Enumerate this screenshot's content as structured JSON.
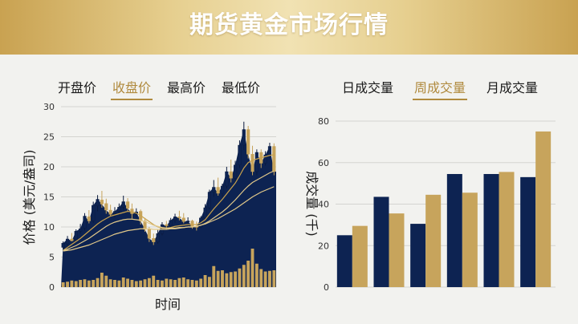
{
  "title": "期货黄金市场行情",
  "colors": {
    "navy": "#0d2352",
    "gold": "#c7a45c",
    "ma_light": "#e2c98a",
    "ma_gold": "#c9a24c"
  },
  "left_tabs": [
    {
      "label": "开盘价",
      "active": false
    },
    {
      "label": "收盘价",
      "active": true
    },
    {
      "label": "最高价",
      "active": false
    },
    {
      "label": "最低价",
      "active": false
    }
  ],
  "right_tabs": [
    {
      "label": "日成交量",
      "active": false
    },
    {
      "label": "周成交量",
      "active": true
    },
    {
      "label": "月成交量",
      "active": false
    }
  ],
  "chart_data": [
    {
      "type": "candlestick",
      "title": "",
      "xlabel": "时间",
      "ylabel": "价格 (美元/盎司)",
      "ylim": [
        0,
        30
      ],
      "yticks": [
        0,
        5,
        10,
        15,
        20,
        25,
        30
      ],
      "grid": true,
      "legend": "none",
      "ohlc": [
        [
          6.6,
          7.6,
          6.2,
          7.3
        ],
        [
          7.2,
          8.5,
          6.9,
          8.0
        ],
        [
          8.0,
          9.0,
          7.6,
          7.7
        ],
        [
          7.8,
          9.6,
          7.5,
          9.3
        ],
        [
          9.3,
          10.5,
          8.9,
          9.7
        ],
        [
          9.8,
          12.3,
          9.4,
          11.8
        ],
        [
          11.7,
          12.8,
          10.6,
          11.0
        ],
        [
          11.0,
          14.2,
          10.7,
          13.6
        ],
        [
          13.5,
          15.3,
          12.6,
          14.6
        ],
        [
          14.5,
          16.0,
          13.2,
          13.8
        ],
        [
          13.9,
          14.7,
          12.2,
          12.8
        ],
        [
          12.8,
          13.7,
          11.8,
          12.1
        ],
        [
          12.2,
          13.3,
          11.6,
          12.6
        ],
        [
          12.6,
          13.9,
          11.9,
          13.3
        ],
        [
          13.3,
          15.2,
          12.9,
          14.2
        ],
        [
          14.2,
          14.8,
          12.6,
          13.1
        ],
        [
          13.0,
          13.9,
          11.4,
          12.2
        ],
        [
          12.2,
          13.1,
          11.6,
          12.5
        ],
        [
          12.6,
          12.9,
          10.4,
          11.0
        ],
        [
          11.0,
          11.5,
          9.2,
          9.6
        ],
        [
          9.6,
          10.0,
          7.5,
          8.1
        ],
        [
          8.1,
          8.9,
          7.0,
          7.5
        ],
        [
          7.5,
          9.5,
          7.2,
          8.9
        ],
        [
          8.9,
          10.8,
          8.6,
          10.4
        ],
        [
          10.4,
          11.0,
          9.6,
          10.2
        ],
        [
          10.2,
          11.5,
          10.0,
          11.1
        ],
        [
          11.1,
          12.2,
          10.7,
          11.7
        ],
        [
          11.7,
          12.7,
          11.1,
          11.5
        ],
        [
          11.5,
          12.3,
          10.6,
          10.9
        ],
        [
          10.9,
          11.6,
          10.3,
          11.0
        ],
        [
          11.0,
          11.2,
          9.7,
          10.1
        ],
        [
          10.1,
          10.9,
          9.4,
          10.0
        ],
        [
          10.0,
          11.8,
          9.8,
          11.5
        ],
        [
          11.5,
          13.8,
          11.3,
          13.2
        ],
        [
          13.2,
          16.2,
          12.9,
          15.8
        ],
        [
          15.8,
          17.8,
          15.0,
          16.6
        ],
        [
          16.6,
          18.2,
          15.2,
          15.6
        ],
        [
          15.6,
          17.2,
          14.9,
          16.8
        ],
        [
          16.8,
          20.0,
          16.4,
          19.2
        ],
        [
          19.2,
          21.2,
          17.4,
          18.1
        ],
        [
          18.1,
          21.0,
          17.6,
          20.3
        ],
        [
          20.3,
          24.4,
          19.8,
          23.6
        ],
        [
          23.6,
          27.5,
          22.8,
          26.2
        ],
        [
          26.2,
          26.8,
          21.4,
          22.1
        ],
        [
          22.1,
          23.5,
          18.6,
          19.2
        ],
        [
          19.2,
          22.9,
          18.6,
          22.4
        ],
        [
          22.4,
          22.9,
          19.8,
          20.6
        ],
        [
          20.6,
          22.6,
          20.2,
          22.0
        ],
        [
          22.0,
          24.0,
          21.4,
          23.4
        ],
        [
          23.4,
          23.9,
          18.6,
          19.2
        ]
      ],
      "volume": [
        0.8,
        0.9,
        1.1,
        1.0,
        1.2,
        1.3,
        1.1,
        1.2,
        1.5,
        2.4,
        1.9,
        1.3,
        1.2,
        1.1,
        1.6,
        1.4,
        1.2,
        1.0,
        1.1,
        1.3,
        1.5,
        1.9,
        1.2,
        1.1,
        1.4,
        1.3,
        1.2,
        1.5,
        1.6,
        1.3,
        1.2,
        1.1,
        1.4,
        2.0,
        1.7,
        3.5,
        2.7,
        2.8,
        2.3,
        2.5,
        2.6,
        3.1,
        3.7,
        4.4,
        6.4,
        3.9,
        3.0,
        2.6,
        2.7,
        2.8
      ],
      "moving_averages": [
        {
          "values": [
            6.1,
            6.6,
            7.1,
            7.6,
            8.1,
            8.7,
            9.3,
            9.9,
            10.5,
            11.0,
            11.4,
            11.8,
            12.0,
            12.2,
            12.4,
            12.6,
            12.5,
            12.3,
            11.9,
            11.4,
            10.9,
            10.4,
            10.0,
            9.8,
            9.8,
            9.9,
            10.1,
            10.2,
            10.3,
            10.4,
            10.4,
            10.4,
            10.7,
            11.2,
            12.1,
            13.0,
            13.8,
            14.6,
            15.5,
            16.4,
            17.3,
            18.5,
            19.8,
            20.7,
            21.1,
            21.3,
            21.5,
            21.7,
            21.9,
            22.0
          ],
          "color": "#c9a24c"
        },
        {
          "values": [
            6.1,
            6.3,
            6.6,
            6.9,
            7.3,
            7.7,
            8.1,
            8.6,
            9.1,
            9.6,
            10.1,
            10.5,
            10.8,
            11.0,
            11.2,
            11.3,
            11.3,
            11.2,
            11.1,
            10.9,
            10.6,
            10.3,
            10.1,
            9.9,
            9.8,
            9.8,
            9.8,
            9.9,
            9.9,
            10.0,
            10.0,
            10.1,
            10.3,
            10.6,
            11.0,
            11.5,
            12.0,
            12.5,
            13.1,
            13.8,
            14.5,
            15.3,
            16.1,
            16.8,
            17.4,
            17.8,
            18.2,
            18.6,
            19.0,
            19.3
          ],
          "color": "#e2c98a"
        },
        {
          "values": [
            6.0,
            6.1,
            6.2,
            6.4,
            6.6,
            6.8,
            7.0,
            7.3,
            7.6,
            7.9,
            8.2,
            8.5,
            8.8,
            9.0,
            9.2,
            9.4,
            9.5,
            9.6,
            9.7,
            9.7,
            9.7,
            9.6,
            9.6,
            9.6,
            9.6,
            9.7,
            9.7,
            9.8,
            9.9,
            10.0,
            10.0,
            10.1,
            10.3,
            10.5,
            10.8,
            11.1,
            11.4,
            11.8,
            12.2,
            12.6,
            13.0,
            13.5,
            14.0,
            14.5,
            15.0,
            15.4,
            15.8,
            16.1,
            16.4,
            16.7
          ],
          "color": "#e2c98a"
        }
      ]
    },
    {
      "type": "bar",
      "title": "",
      "xlabel": "",
      "ylabel": "成交量 (千)",
      "ylim": [
        0,
        80
      ],
      "yticks": [
        0,
        20,
        40,
        60,
        80
      ],
      "grid": true,
      "legend": "none",
      "categories": [
        "",
        "",
        "",
        "",
        "",
        ""
      ],
      "series": [
        {
          "values": [
            25,
            43.5,
            30.5,
            54.5,
            54.5,
            53
          ],
          "color": "#0d2352"
        },
        {
          "values": [
            29.5,
            35.5,
            44.5,
            45.5,
            55.5,
            75
          ],
          "color": "#c7a45c"
        }
      ]
    }
  ]
}
